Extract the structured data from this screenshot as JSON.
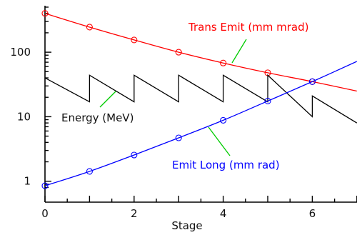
{
  "chart_data": {
    "type": "line",
    "title": "",
    "xlabel": "Stage",
    "ylabel": "",
    "xlim": [
      0,
      7
    ],
    "ylim": [
      0.75,
      600
    ],
    "yscale": "log",
    "grid": false,
    "legend": "inline labels with leader lines",
    "x_ticks": [
      0,
      2,
      4,
      6
    ],
    "y_ticks": [
      1,
      10,
      100
    ],
    "y_tick_labels": [
      "1",
      "10",
      "100"
    ],
    "series": [
      {
        "name": "Trans Emit (mm mrad)",
        "color": "#ff0000",
        "markers": "circle",
        "x": [
          0,
          1,
          2,
          3,
          4,
          5,
          6,
          7
        ],
        "y": [
          400,
          245,
          155,
          100,
          68,
          48,
          35,
          25
        ]
      },
      {
        "name": "Energy (MeV)",
        "color": "#000000",
        "markers": "none",
        "x": [
          0,
          1,
          1,
          2,
          2,
          3,
          3,
          4,
          4,
          5,
          5,
          6,
          6,
          7
        ],
        "y": [
          40,
          17,
          44,
          17,
          44,
          17,
          44,
          17,
          44,
          17,
          44,
          10,
          21,
          8
        ]
      },
      {
        "name": "Emit Long (mm rad)",
        "color": "#0000ff",
        "markers": "circle",
        "x": [
          0,
          1,
          2,
          3,
          4,
          5,
          6,
          7
        ],
        "y": [
          0.85,
          1.42,
          2.55,
          4.7,
          8.8,
          17.5,
          35,
          72
        ]
      }
    ]
  }
}
